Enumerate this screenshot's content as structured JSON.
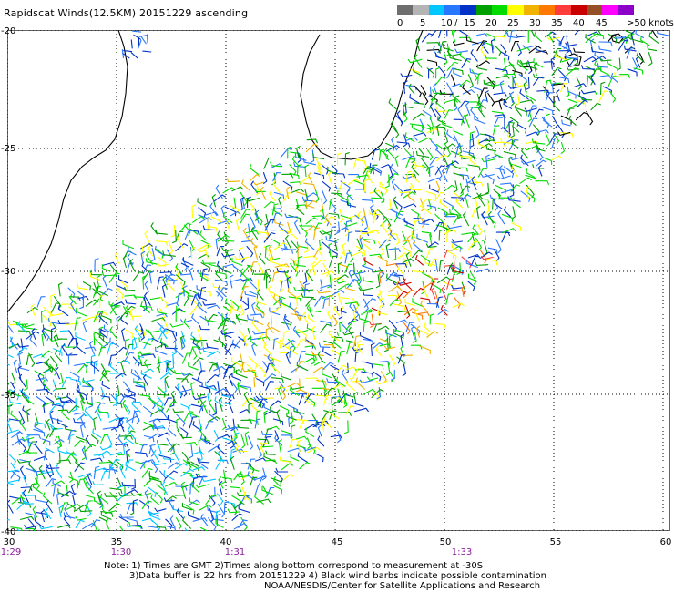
{
  "title": "Rapidscat Winds(12.5KM) 20151229 ascending",
  "legend": {
    "colors": [
      "#6e6e6e",
      "#b4b4b4",
      "#00c8ff",
      "#2878ff",
      "#0032c8",
      "#00a000",
      "#00dc00",
      "#ffff00",
      "#f0b400",
      "#ff7800",
      "#ff3c3c",
      "#c80000",
      "#965028",
      "#ff00ff",
      "#8c00c8"
    ],
    "labels": [
      "0",
      "5",
      "10",
      "15",
      "20",
      "25",
      "30",
      "35",
      "40",
      "45",
      ">50 knots"
    ],
    "label_separator": "/"
  },
  "axes": {
    "lat_labels": [
      "-20",
      "-25",
      "-30",
      "-35",
      "-40"
    ],
    "lon_labels": [
      "30",
      "35",
      "40",
      "45",
      "50",
      "55",
      "60"
    ],
    "time_labels": [
      "1:29",
      "1:30",
      "1:31",
      "1:33"
    ]
  },
  "notes": [
    "Note: 1) Times are GMT 2)Times along bottom correspond to measurement at -30S",
    "3)Data buffer is 22 hrs from 20151229 4) Black wind barbs indicate possible contamination",
    "NOAA/NESDIS/Center for Satellite Applications and Research"
  ]
}
